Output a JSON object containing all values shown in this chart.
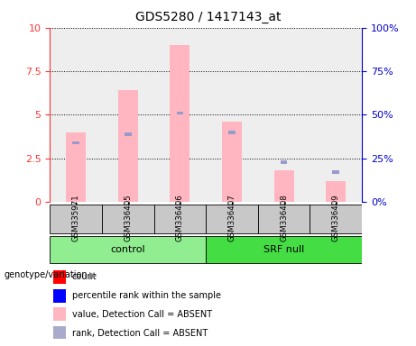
{
  "title": "GDS5280 / 1417143_at",
  "samples": [
    "GSM335971",
    "GSM336405",
    "GSM336406",
    "GSM336407",
    "GSM336408",
    "GSM336409"
  ],
  "pink_vals": [
    4.0,
    6.4,
    9.0,
    4.6,
    1.8,
    1.2
  ],
  "blue_vals": [
    3.4,
    3.9,
    5.1,
    4.0,
    2.3,
    1.7
  ],
  "ylim_left": [
    0,
    10
  ],
  "yticks_left": [
    0,
    2.5,
    5.0,
    7.5,
    10
  ],
  "ytick_labels_left": [
    "0",
    "2.5",
    "5",
    "7.5",
    "10"
  ],
  "ytick_labels_right": [
    "0%",
    "25%",
    "50%",
    "75%",
    "100%"
  ],
  "left_axis_color": "#FF3333",
  "right_axis_color": "#0000CC",
  "pink_color": "#FFB6C1",
  "blue_color": "#9999CC",
  "gray_color": "#C8C8C8",
  "green1": "#90EE90",
  "green2": "#44DD44",
  "legend_colors": [
    "#FF0000",
    "#0000FF",
    "#FFB6C1",
    "#AAAACC"
  ],
  "legend_labels": [
    "count",
    "percentile rank within the sample",
    "value, Detection Call = ABSENT",
    "rank, Detection Call = ABSENT"
  ]
}
